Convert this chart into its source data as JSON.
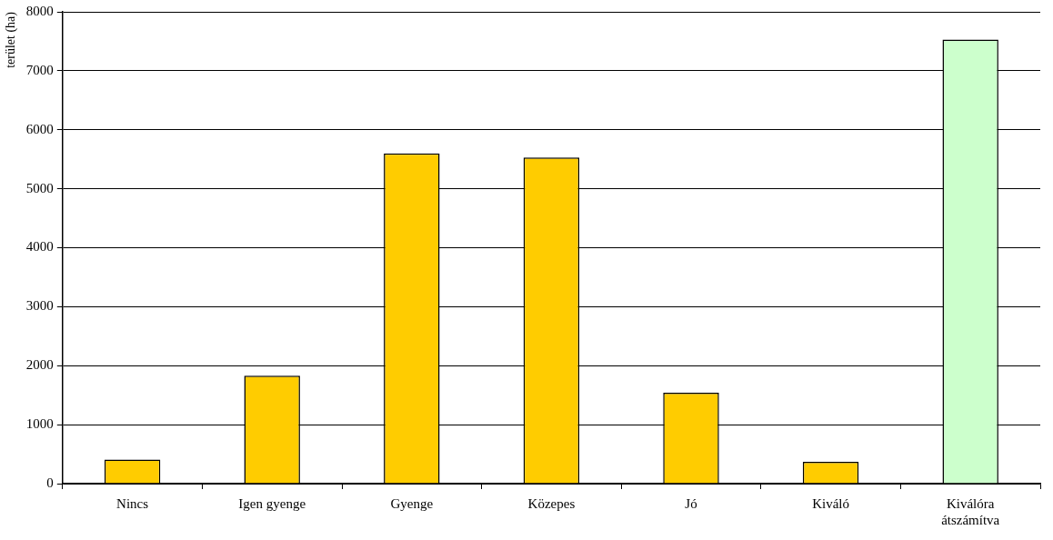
{
  "chart_data": {
    "type": "bar",
    "ylabel": "terület (ha)",
    "categories": [
      "Nincs",
      "Igen gyenge",
      "Gyenge",
      "Közepes",
      "Jó",
      "Kiváló",
      "Kiválóra átszámítva"
    ],
    "values": [
      410,
      1830,
      5600,
      5530,
      1540,
      370,
      7530
    ],
    "colors": [
      "#ffcc00",
      "#ffcc00",
      "#ffcc00",
      "#ffcc00",
      "#ffcc00",
      "#ffcc00",
      "#ccffcc"
    ],
    "ylim": [
      0,
      8000
    ],
    "yticks": [
      0,
      1000,
      2000,
      3000,
      4000,
      5000,
      6000,
      7000,
      8000
    ],
    "grid": "y",
    "legend": false
  }
}
